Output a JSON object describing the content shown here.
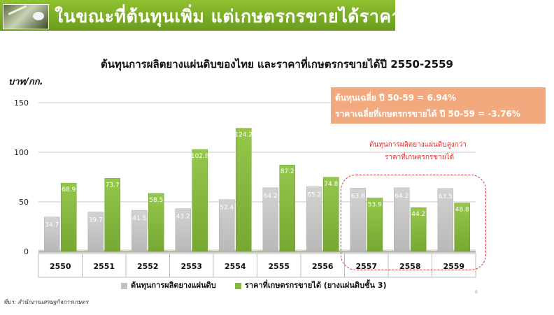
{
  "header": {
    "title": "ในขณะที่ต้นทุนเพิ่ม   แต่เกษตรกรขายได้ราคาลดลง"
  },
  "chart_data": {
    "type": "bar",
    "title": "ต้นทุนการผลิตยางแผ่นดิบของไทย และราคาที่เกษตรกรขายได้ปี 2550-2559",
    "ylabel": "บาท/กก.",
    "xlabel": "",
    "ylim": [
      0,
      150
    ],
    "yticks": [
      0,
      50,
      100,
      150
    ],
    "grid": true,
    "legend_position": "bottom",
    "categories": [
      "2550",
      "2551",
      "2552",
      "2553",
      "2554",
      "2555",
      "2556",
      "2557",
      "2558",
      "2559"
    ],
    "series": [
      {
        "name": "ต้นทุนการผลิตยางแผ่นดิบ",
        "color": "#c8c8c8",
        "values": [
          34.7,
          39.7,
          41.5,
          43.2,
          52.4,
          64.2,
          65.2,
          63.8,
          64.2,
          63.5
        ]
      },
      {
        "name": "ราคาที่เกษตรกรขายได้ (ยางแผ่นดิบชั้น 3)",
        "color": "#8cbf44",
        "values": [
          68.9,
          73.7,
          58.5,
          102.8,
          124.2,
          87.2,
          74.8,
          53.9,
          44.2,
          48.8
        ]
      }
    ],
    "annotations": {
      "box_line1": "ต้นทุนเฉลี่ย ปี 50-59 = 6.94%",
      "box_line2": "ราคาเฉลี่ยที่เกษตรกรขายได้ ปี 50-59 = -3.76%",
      "red_line1": "ต้นทุนการผลิตยางแผ่นดิบสูงกว่า",
      "red_line2": "ราคาที่เกษตรกรขายได้"
    }
  },
  "footer": {
    "source": "ที่มา:   สำนักงานเศรษฐกิจการเกษตร",
    "page": "6"
  }
}
